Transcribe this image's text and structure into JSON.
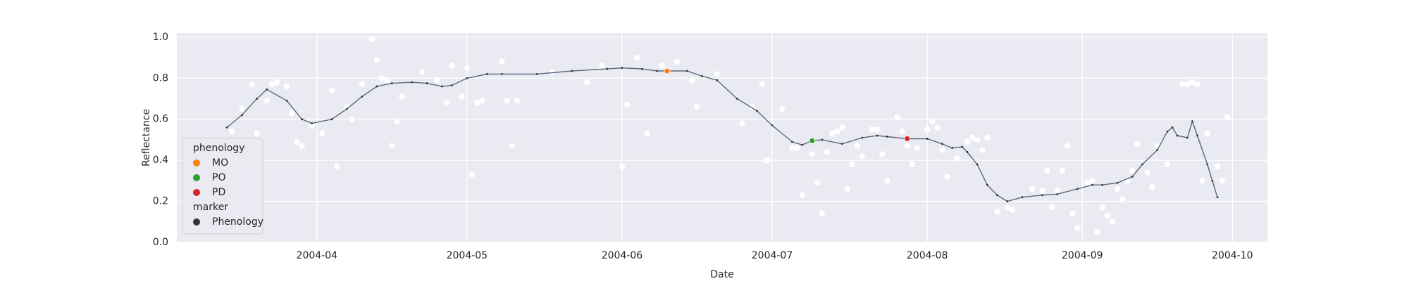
{
  "chart_data": {
    "type": "line",
    "xlabel": "Date",
    "ylabel": "Reflectance",
    "xlim": [
      "2004-03-04",
      "2004-10-08"
    ],
    "xticks": [
      "2004-04",
      "2004-05",
      "2004-06",
      "2004-07",
      "2004-08",
      "2004-09",
      "2004-10"
    ],
    "ylim": [
      0,
      1.02
    ],
    "yticks": [
      {
        "value": 0,
        "label": "0.0"
      },
      {
        "value": 0.2,
        "label": "0.2"
      },
      {
        "value": 0.4,
        "label": "0.4"
      },
      {
        "value": 0.6,
        "label": "0.6"
      },
      {
        "value": 0.8,
        "label": "0.8"
      },
      {
        "value": 1,
        "label": "1.0"
      }
    ],
    "grid": true,
    "background": "#eaeaf2",
    "legend": "lower left",
    "raw": {
      "color": "#ffffff",
      "x": [
        "2004-03-15",
        "2004-03-17",
        "2004-03-19",
        "2004-03-20",
        "2004-03-22",
        "2004-03-23",
        "2004-03-24",
        "2004-03-26",
        "2004-03-27",
        "2004-03-28",
        "2004-03-29",
        "2004-03-31",
        "2004-04-02",
        "2004-04-04",
        "2004-04-05",
        "2004-04-07",
        "2004-04-08",
        "2004-04-10",
        "2004-04-12",
        "2004-04-13",
        "2004-04-14",
        "2004-04-15",
        "2004-04-16",
        "2004-04-17",
        "2004-04-18",
        "2004-04-22",
        "2004-04-25",
        "2004-04-27",
        "2004-04-28",
        "2004-04-30",
        "2004-05-01",
        "2004-05-02",
        "2004-05-03",
        "2004-05-04",
        "2004-05-08",
        "2004-05-09",
        "2004-05-10",
        "2004-05-11",
        "2004-05-18",
        "2004-05-25",
        "2004-05-28",
        "2004-06-01",
        "2004-06-02",
        "2004-06-04",
        "2004-06-06",
        "2004-06-09",
        "2004-06-12",
        "2004-06-15",
        "2004-06-16",
        "2004-06-20",
        "2004-06-25",
        "2004-06-27",
        "2004-06-29",
        "2004-06-30",
        "2004-07-03",
        "2004-07-05",
        "2004-07-06",
        "2004-07-07",
        "2004-07-09",
        "2004-07-10",
        "2004-07-11",
        "2004-07-12",
        "2004-07-13",
        "2004-07-14",
        "2004-07-15",
        "2004-07-16",
        "2004-07-17",
        "2004-07-18",
        "2004-07-19",
        "2004-07-21",
        "2004-07-22",
        "2004-07-23",
        "2004-07-24",
        "2004-07-26",
        "2004-07-27",
        "2004-07-28",
        "2004-07-29",
        "2004-07-30",
        "2004-08-01",
        "2004-08-02",
        "2004-08-03",
        "2004-08-04",
        "2004-08-05",
        "2004-08-07",
        "2004-08-09",
        "2004-08-10",
        "2004-08-11",
        "2004-08-12",
        "2004-08-13",
        "2004-08-15",
        "2004-08-17",
        "2004-08-18",
        "2004-08-22",
        "2004-08-24",
        "2004-08-25",
        "2004-08-26",
        "2004-08-27",
        "2004-08-28",
        "2004-08-29",
        "2004-08-30",
        "2004-08-31",
        "2004-09-02",
        "2004-09-03",
        "2004-09-04",
        "2004-09-05",
        "2004-09-06",
        "2004-09-07",
        "2004-09-08",
        "2004-09-09",
        "2004-09-10",
        "2004-09-11",
        "2004-09-12",
        "2004-09-14",
        "2004-09-15",
        "2004-09-16",
        "2004-09-18",
        "2004-09-21",
        "2004-09-22",
        "2004-09-23",
        "2004-09-24",
        "2004-09-25",
        "2004-09-26",
        "2004-09-28",
        "2004-09-29",
        "2004-09-30"
      ],
      "values": [
        0.54,
        0.65,
        0.77,
        0.53,
        0.69,
        0.77,
        0.78,
        0.76,
        0.63,
        0.49,
        0.47,
        0.57,
        0.53,
        0.74,
        0.37,
        0.66,
        0.6,
        0.77,
        0.99,
        0.89,
        0.8,
        0.79,
        0.47,
        0.59,
        0.71,
        0.83,
        0.79,
        0.68,
        0.86,
        0.71,
        0.85,
        0.33,
        0.68,
        0.69,
        0.88,
        0.69,
        0.47,
        0.69,
        0.83,
        0.78,
        0.86,
        0.37,
        0.67,
        0.9,
        0.53,
        0.86,
        0.88,
        0.79,
        0.66,
        0.82,
        0.58,
        0.66,
        0.77,
        0.4,
        0.65,
        0.46,
        0.46,
        0.23,
        0.43,
        0.29,
        0.14,
        0.44,
        0.53,
        0.54,
        0.56,
        0.26,
        0.38,
        0.47,
        0.42,
        0.55,
        0.55,
        0.43,
        0.3,
        0.61,
        0.54,
        0.47,
        0.38,
        0.46,
        0.55,
        0.59,
        0.56,
        0.45,
        0.32,
        0.41,
        0.49,
        0.51,
        0.5,
        0.45,
        0.51,
        0.15,
        0.17,
        0.16,
        0.26,
        0.25,
        0.35,
        0.17,
        0.25,
        0.35,
        0.47,
        0.14,
        0.07,
        0.29,
        0.3,
        0.05,
        0.17,
        0.13,
        0.1,
        0.26,
        0.21,
        0.3,
        0.35,
        0.48,
        0.34,
        0.27,
        0.47,
        0.38,
        0.77,
        0.77,
        0.78,
        0.77,
        0.3,
        0.53,
        0.37,
        0.3,
        0.61
      ]
    },
    "line": {
      "color": "#5a6a7c",
      "marker": "Phenology",
      "marker_color": "#333333",
      "x": [
        "2004-03-14",
        "2004-03-17",
        "2004-03-20",
        "2004-03-22",
        "2004-03-26",
        "2004-03-29",
        "2004-03-31",
        "2004-04-04",
        "2004-04-07",
        "2004-04-10",
        "2004-04-13",
        "2004-04-16",
        "2004-04-20",
        "2004-04-23",
        "2004-04-26",
        "2004-04-28",
        "2004-05-01",
        "2004-05-05",
        "2004-05-08",
        "2004-05-15",
        "2004-05-22",
        "2004-05-29",
        "2004-06-01",
        "2004-06-05",
        "2004-06-08",
        "2004-06-10",
        "2004-06-14",
        "2004-06-17",
        "2004-06-20",
        "2004-06-24",
        "2004-06-28",
        "2004-07-01",
        "2004-07-05",
        "2004-07-07",
        "2004-07-09",
        "2004-07-11",
        "2004-07-15",
        "2004-07-19",
        "2004-07-22",
        "2004-07-24",
        "2004-07-28",
        "2004-08-01",
        "2004-08-04",
        "2004-08-06",
        "2004-08-08",
        "2004-08-09",
        "2004-08-11",
        "2004-08-13",
        "2004-08-15",
        "2004-08-17",
        "2004-08-20",
        "2004-08-24",
        "2004-08-27",
        "2004-08-31",
        "2004-09-03",
        "2004-09-05",
        "2004-09-08",
        "2004-09-11",
        "2004-09-13",
        "2004-09-16",
        "2004-09-18",
        "2004-09-19",
        "2004-09-20",
        "2004-09-22",
        "2004-09-23",
        "2004-09-24",
        "2004-09-26",
        "2004-09-27",
        "2004-09-28"
      ],
      "values": [
        0.56,
        0.62,
        0.7,
        0.745,
        0.69,
        0.6,
        0.58,
        0.6,
        0.65,
        0.71,
        0.76,
        0.775,
        0.78,
        0.775,
        0.76,
        0.765,
        0.8,
        0.82,
        0.82,
        0.82,
        0.835,
        0.845,
        0.85,
        0.845,
        0.835,
        0.835,
        0.835,
        0.81,
        0.79,
        0.7,
        0.64,
        0.57,
        0.49,
        0.475,
        0.495,
        0.5,
        0.48,
        0.51,
        0.52,
        0.515,
        0.505,
        0.505,
        0.48,
        0.46,
        0.465,
        0.44,
        0.38,
        0.28,
        0.23,
        0.2,
        0.22,
        0.23,
        0.235,
        0.26,
        0.28,
        0.28,
        0.29,
        0.32,
        0.38,
        0.45,
        0.54,
        0.56,
        0.52,
        0.51,
        0.59,
        0.52,
        0.38,
        0.3,
        0.22
      ]
    },
    "phenology_title": "phenology",
    "marker_title": "marker",
    "series": [
      {
        "name": "MO",
        "color": "#ff7f0e",
        "x": [
          "2004-06-10"
        ],
        "values": [
          0.835
        ]
      },
      {
        "name": "PO",
        "color": "#2ca02c",
        "x": [
          "2004-07-09"
        ],
        "values": [
          0.495
        ]
      },
      {
        "name": "PD",
        "color": "#d62728",
        "x": [
          "2004-07-28"
        ],
        "values": [
          0.505
        ]
      }
    ]
  }
}
